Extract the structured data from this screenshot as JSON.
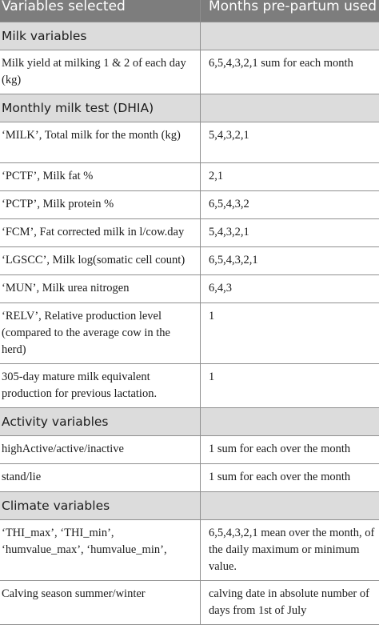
{
  "header": {
    "col1": "Variables selected",
    "col2": "Months pre-partum used"
  },
  "sections": {
    "milk": "Milk variables",
    "dhia": "Monthly milk test (DHIA)",
    "activity": "Activity variables",
    "climate": "Climate variables"
  },
  "rows": {
    "milk_yield": {
      "variable": "Milk yield at milking 1 & 2 of each day (kg)",
      "months": "6,5,4,3,2,1 sum for each month"
    },
    "milk_total": {
      "variable": "‘MILK’, Total milk for the month (kg)",
      "months": "5,4,3,2,1"
    },
    "pctf": {
      "variable": "‘PCTF’, Milk fat %",
      "months": "2,1"
    },
    "pctp": {
      "variable": "‘PCTP’, Milk protein %",
      "months": "6,5,4,3,2"
    },
    "fcm": {
      "variable": "‘FCM’, Fat corrected milk in l/cow.day",
      "months": "5,4,3,2,1"
    },
    "lgscc": {
      "variable": "‘LGSCC’, Milk log(somatic cell count)",
      "months": "6,5,4,3,2,1"
    },
    "mun": {
      "variable": "‘MUN’, Milk urea nitrogen",
      "months": "6,4,3"
    },
    "relv": {
      "variable": "‘RELV’, Relative production level (compared to the average cow in the herd)",
      "months": "1"
    },
    "mature305": {
      "variable": "305-day mature milk equivalent production for previous lactation.",
      "months": "1"
    },
    "activity_level": {
      "variable": "highActive/active/inactive",
      "months": "1 sum for each over the month"
    },
    "stand_lie": {
      "variable": "stand/lie",
      "months": "1 sum for each over the month"
    },
    "thi": {
      "variable": "‘THI_max’, ‘THI_min’, ‘humvalue_max’, ‘humvalue_min’,",
      "months": "6,5,4,3,2,1 mean over the month, of the daily maximum or minimum value."
    },
    "calving": {
      "variable": "Calving season summer/winter",
      "months": "calving date in absolute number of days from 1st of July"
    }
  }
}
